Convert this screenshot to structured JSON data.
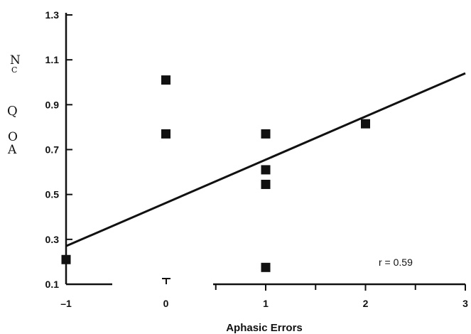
{
  "chart_data": {
    "type": "scatter",
    "title": "",
    "xlabel": "Aphasic Errors",
    "ylabel_fragments": [
      "N",
      "C",
      "Q",
      "O",
      "A"
    ],
    "xlim": [
      -1,
      3
    ],
    "ylim": [
      0.1,
      1.3
    ],
    "x_ticks": [
      -1,
      0,
      1,
      2,
      3
    ],
    "x_tick_labels": [
      "–1",
      "0",
      "1",
      "2",
      "3"
    ],
    "y_ticks": [
      0.1,
      0.3,
      0.5,
      0.7,
      0.9,
      1.1,
      1.3
    ],
    "y_tick_labels": [
      "0.1",
      "0.3",
      "0.5",
      "0.7",
      "0.9",
      "1.1",
      "1.3"
    ],
    "points": [
      {
        "x": -1,
        "y": 0.21
      },
      {
        "x": 0,
        "y": 1.01
      },
      {
        "x": 0,
        "y": 0.77
      },
      {
        "x": 1,
        "y": 0.77
      },
      {
        "x": 1,
        "y": 0.61
      },
      {
        "x": 1,
        "y": 0.545
      },
      {
        "x": 1,
        "y": 0.175
      },
      {
        "x": 2,
        "y": 0.815
      }
    ],
    "regression_line": {
      "x": [
        -1,
        3
      ],
      "y": [
        0.27,
        1.04
      ]
    },
    "annotation": "r = 0.59",
    "grid": false,
    "legend": "none",
    "colors": {
      "marker": "#111111",
      "line": "#111111",
      "axis": "#111111"
    }
  }
}
